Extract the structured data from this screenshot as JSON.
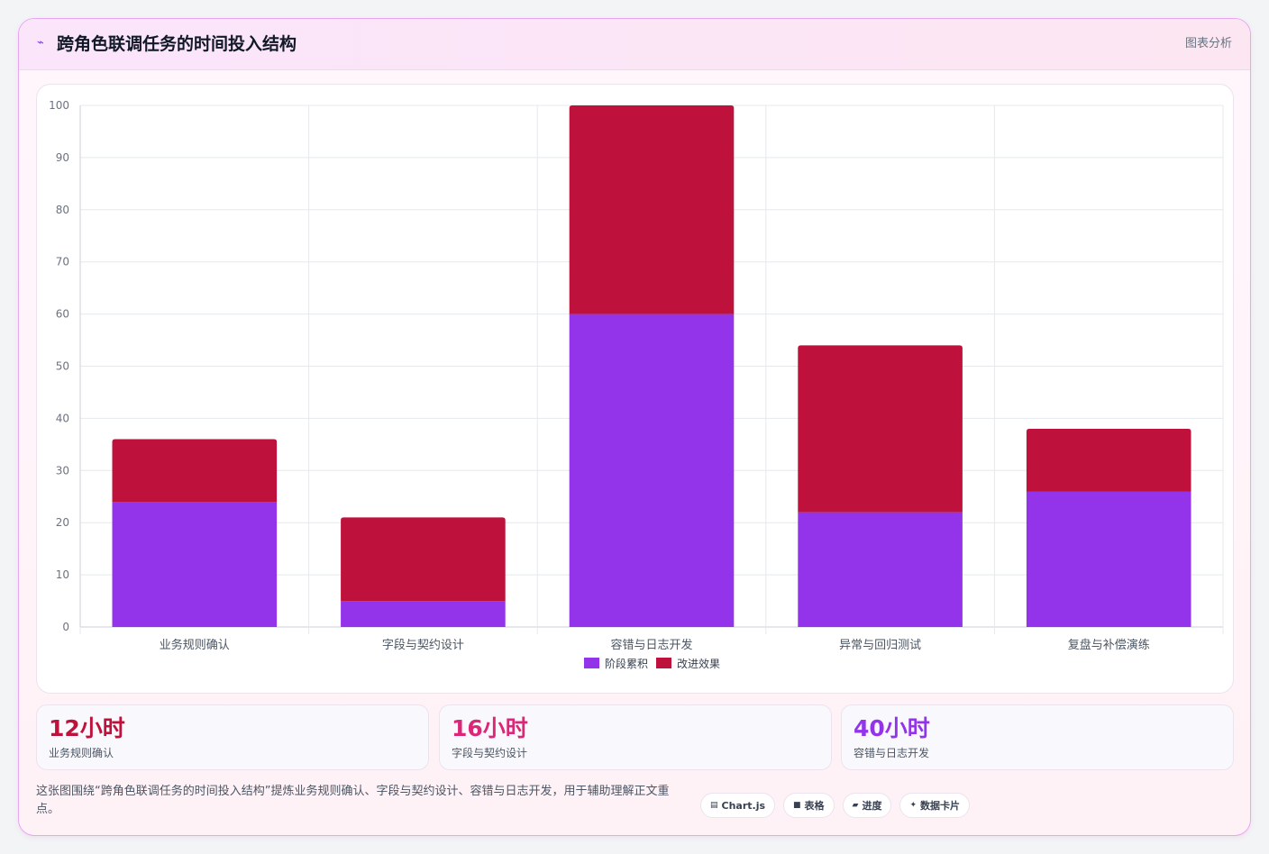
{
  "header": {
    "title": "跨角色联调任务的时间投入结构",
    "right_label": "图表分析"
  },
  "chart_data": {
    "type": "bar",
    "stacked": true,
    "categories": [
      "业务规则确认",
      "字段与契约设计",
      "容错与日志开发",
      "异常与回归测试",
      "复盘与补偿演练"
    ],
    "series": [
      {
        "name": "阶段累积",
        "values": [
          24,
          5,
          60,
          22,
          26
        ],
        "color": "#9333ea"
      },
      {
        "name": "改进效果",
        "values": [
          12,
          16,
          40,
          32,
          12
        ],
        "color": "#be123c"
      }
    ],
    "ylim": [
      0,
      100
    ],
    "yticks": [
      0,
      10,
      20,
      30,
      40,
      50,
      60,
      70,
      80,
      90,
      100
    ],
    "grid": true,
    "legend": "bottom"
  },
  "stats": [
    {
      "value": "12小时",
      "label": "业务规则确认",
      "color": "#be123c"
    },
    {
      "value": "16小时",
      "label": "字段与契约设计",
      "color": "#db2777"
    },
    {
      "value": "40小时",
      "label": "容错与日志开发",
      "color": "#9333ea"
    }
  ],
  "note": "这张图围绕“跨角色联调任务的时间投入结构”提炼业务规则确认、字段与契约设计、容错与日志开发，用于辅助理解正文重点。",
  "pills": [
    {
      "icon": "chart-icon",
      "glyph": "▤",
      "label": "Chart.js"
    },
    {
      "icon": "table-icon",
      "glyph": "■",
      "label": "表格"
    },
    {
      "icon": "progress-icon",
      "glyph": "▰",
      "label": "进度"
    },
    {
      "icon": "sparkle-icon",
      "glyph": "✦",
      "label": "数据卡片"
    }
  ]
}
